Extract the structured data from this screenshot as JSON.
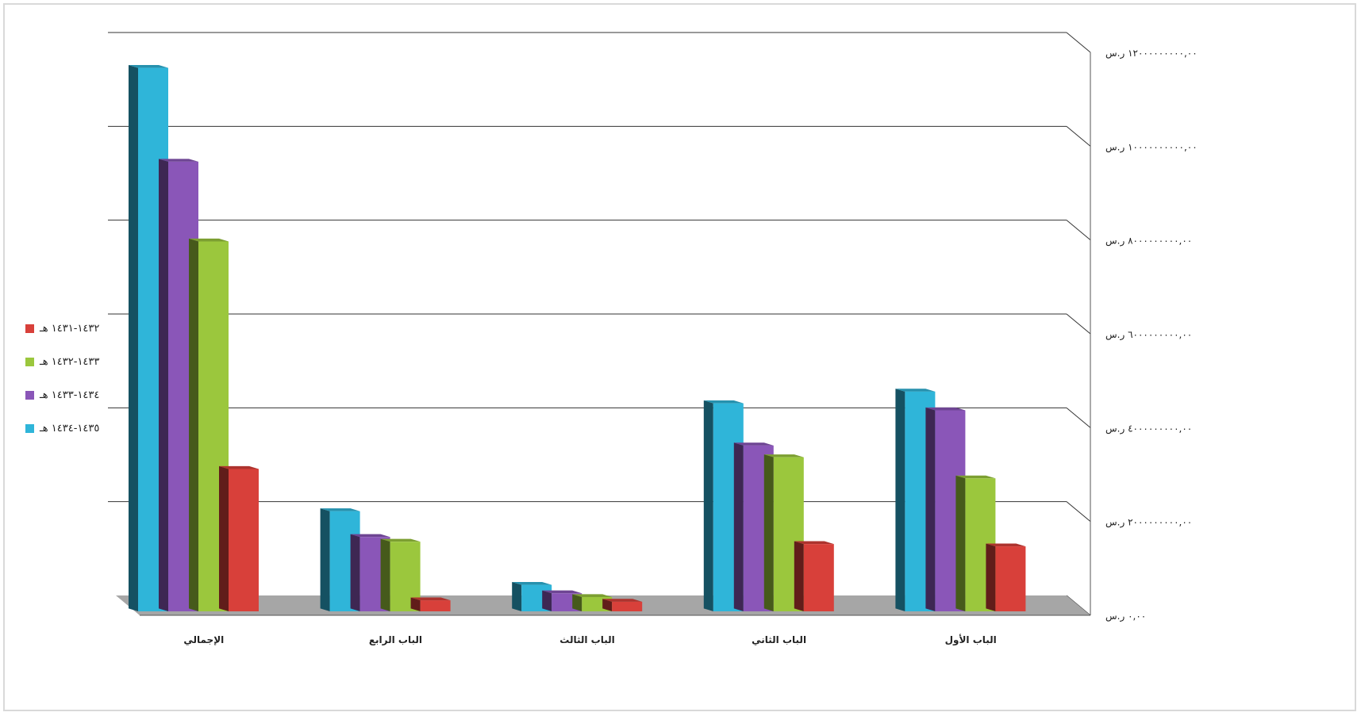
{
  "chart_data": {
    "type": "bar",
    "title": "",
    "xlabel": "",
    "ylabel": "",
    "categories": [
      "الباب الأول",
      "الباب الثاني",
      "الباب الثالث",
      "الباب الرابع",
      "الإجمالي"
    ],
    "ylim": [
      0,
      12000000000
    ],
    "y_ticks": [
      {
        "value": 0,
        "label": "٠,٠٠ ر.س"
      },
      {
        "value": 2000000000,
        "label": "٢٠٠٠٠٠٠٠٠٠,٠٠ ر.س"
      },
      {
        "value": 4000000000,
        "label": "٤٠٠٠٠٠٠٠٠٠,٠٠ ر.س"
      },
      {
        "value": 6000000000,
        "label": "٦٠٠٠٠٠٠٠٠٠,٠٠ ر.س"
      },
      {
        "value": 8000000000,
        "label": "٨٠٠٠٠٠٠٠٠٠,٠٠ ر.س"
      },
      {
        "value": 10000000000,
        "label": "١٠٠٠٠٠٠٠٠٠٠,٠٠ ر.س"
      },
      {
        "value": 12000000000,
        "label": "١٢٠٠٠٠٠٠٠٠٠,٠٠ ر.س"
      }
    ],
    "series": [
      {
        "name": "١٤٣٥-١٤٣٤ هـ",
        "color": "#2fb5d9",
        "values": [
          4600000000,
          4350000000,
          480000000,
          2050000000,
          11500000000
        ]
      },
      {
        "name": "١٤٣٤-١٤٣٣ هـ",
        "color": "#8a56b8",
        "values": [
          4200000000,
          3450000000,
          300000000,
          1500000000,
          9500000000
        ]
      },
      {
        "name": "١٤٣٣-١٤٣٢ هـ",
        "color": "#9bc73d",
        "values": [
          2750000000,
          3200000000,
          220000000,
          1400000000,
          7800000000
        ]
      },
      {
        "name": "١٤٣٢-١٤٣١ هـ",
        "color": "#d8403a",
        "values": [
          1300000000,
          1350000000,
          120000000,
          150000000,
          2950000000
        ]
      }
    ],
    "legend_position": "left",
    "grid": true
  }
}
